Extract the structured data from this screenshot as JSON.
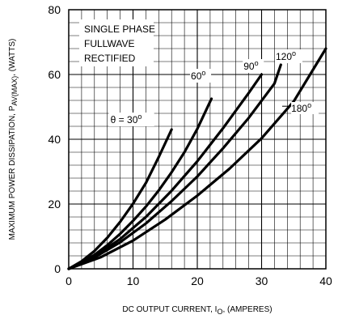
{
  "chart_data": {
    "type": "line",
    "xlabel": {
      "main": "DC OUTPUT CURRENT, I",
      "sub": "O",
      "suffix": ", (AMPERES)"
    },
    "ylabel": {
      "main": "MAXIMUM POWER DISSIPATION, P",
      "sub": "AV(MAX)",
      "suffix": ", (WATTS)"
    },
    "xlim": [
      0,
      40
    ],
    "ylim": [
      0,
      80
    ],
    "xticks": [
      0,
      10,
      20,
      30,
      40
    ],
    "yticks": [
      0,
      20,
      40,
      60,
      80
    ],
    "grid": true,
    "annotation_lines": [
      "SINGLE PHASE",
      "FULLWAVE",
      "RECTIFIED"
    ],
    "series": [
      {
        "name": "θ = 30o",
        "label_text": "θ = 30",
        "label_sup": "o",
        "x": [
          0,
          2,
          4,
          6,
          8,
          10,
          12,
          14,
          16
        ],
        "y": [
          0,
          2.3,
          5.5,
          9.6,
          14.5,
          20.1,
          26.5,
          34.5,
          43
        ]
      },
      {
        "name": "60o",
        "label_text": "60",
        "label_sup": "o",
        "x": [
          0,
          2,
          4,
          6,
          8,
          10,
          12,
          14,
          16,
          18,
          20,
          22.2
        ],
        "y": [
          0,
          1.9,
          4.3,
          7.3,
          10.8,
          14.8,
          19.2,
          24.2,
          29.8,
          36,
          43.2,
          52.5
        ]
      },
      {
        "name": "90o",
        "label_text": "90",
        "label_sup": "o",
        "x": [
          0,
          4,
          8,
          12,
          16,
          20,
          24,
          28,
          30
        ],
        "y": [
          0,
          3.8,
          9.2,
          16,
          24.1,
          33.2,
          43.4,
          54.3,
          60
        ]
      },
      {
        "name": "120o",
        "label_text": "120",
        "label_sup": "o",
        "x": [
          0,
          4,
          8,
          12,
          16,
          20,
          24,
          28,
          32,
          33
        ],
        "y": [
          0,
          3.5,
          8.2,
          14,
          20.9,
          28.5,
          37.2,
          46.6,
          57.2,
          63
        ]
      },
      {
        "name": "180o",
        "label_text": "180",
        "label_sup": "o",
        "x": [
          0,
          5,
          10,
          15,
          20,
          25,
          30,
          35,
          40
        ],
        "y": [
          0,
          3.6,
          8.7,
          15.2,
          22.6,
          30.9,
          40.3,
          51.7,
          68
        ]
      }
    ]
  }
}
